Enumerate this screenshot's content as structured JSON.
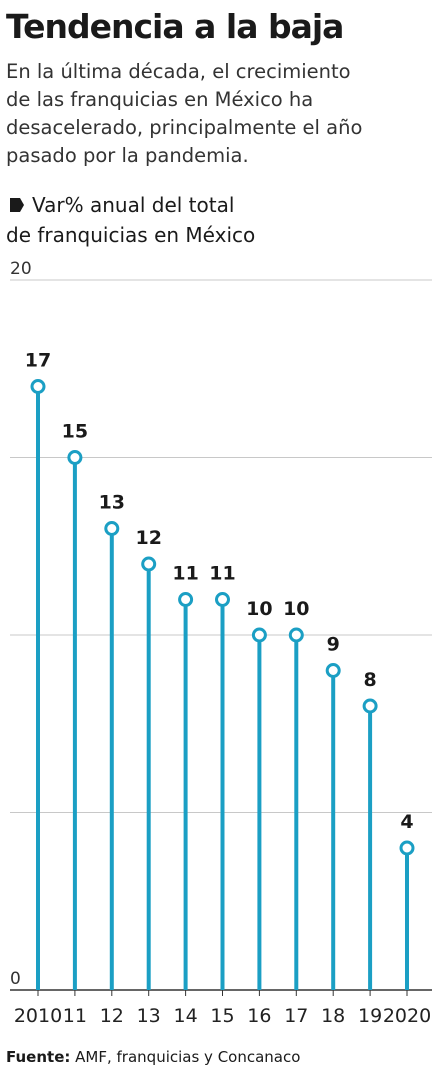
{
  "chart_data": {
    "type": "lollipop",
    "title": "Tendencia a la baja",
    "subtitle": [
      "En la última década, el crecimiento",
      "de las franquicias en México ha",
      "desacelerado, principalmente el año",
      "pasado por la pandemia."
    ],
    "series_label": [
      "Var% anual del total",
      "de franquicias en México"
    ],
    "categories": [
      "2010",
      "11",
      "12",
      "13",
      "14",
      "15",
      "16",
      "17",
      "18",
      "19",
      "2020"
    ],
    "values": [
      17,
      15,
      13,
      12,
      11,
      11,
      10,
      10,
      9,
      8,
      4
    ],
    "color": "#1b9fc4",
    "ylim": [
      0,
      20
    ],
    "yticks": [
      0,
      20
    ],
    "ygrid": [
      5,
      10,
      15,
      20
    ],
    "source_label": "Fuente:",
    "source": "AMF, franquicias  y Concanaco"
  }
}
